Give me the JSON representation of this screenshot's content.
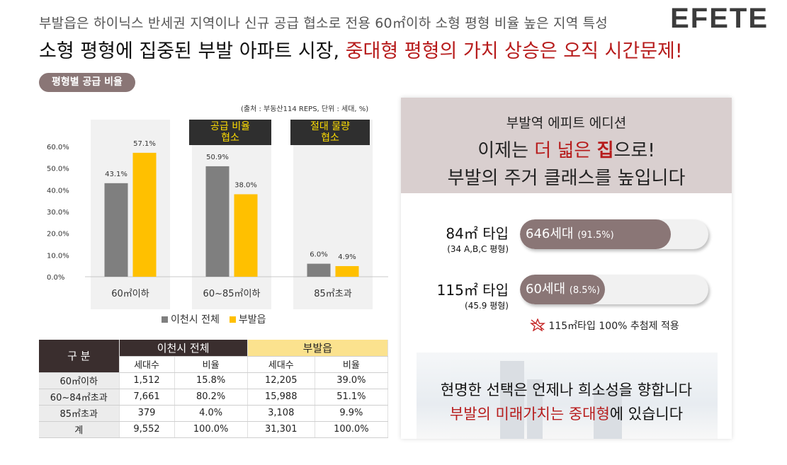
{
  "header": {
    "subheadline": "부발읍은 하이닉스 반세권 지역이나 신규 공급 협소로 전용 60㎡이하 소형 평형 비율 높은 지역 특성",
    "brand": "EFETE",
    "headline_main": "소형 평형에 집중된 부발 아파트 시장,",
    "headline_accent": "중대형 평형의 가치 상승은 오직 시간문제!"
  },
  "section_pill": "평형별 공급 비율",
  "source_note": "(출처 : 부동산114 REPS,  단위 : 세대, %)",
  "tags": [
    {
      "line1": "공급 비율",
      "line2": "협소"
    },
    {
      "line1": "절대 물량",
      "line2": "협소"
    }
  ],
  "chart_data": {
    "type": "bar",
    "categories": [
      "60㎡이하",
      "60~85㎡이하",
      "85㎡초과"
    ],
    "series": [
      {
        "name": "이천시 전체",
        "color": "#7f7f7f",
        "values": [
          43.1,
          50.9,
          6.0
        ],
        "labels": [
          "43.1%",
          "50.9%",
          "6.0%"
        ]
      },
      {
        "name": "부발읍",
        "color": "#ffc000",
        "values": [
          57.1,
          38.0,
          4.9
        ],
        "labels": [
          "57.1%",
          "38.0%",
          "4.9%"
        ]
      }
    ],
    "ylim": [
      0,
      60
    ],
    "yticks": [
      "0.0%",
      "10.0%",
      "20.0%",
      "30.0%",
      "40.0%",
      "50.0%",
      "60.0%"
    ],
    "legend_position": "bottom"
  },
  "table": {
    "corner": "구 분",
    "group1": "이천시 전체",
    "group2": "부발읍",
    "sub_headers": [
      "세대수",
      "비율",
      "세대수",
      "비율"
    ],
    "rows": [
      {
        "label": "60㎡이하",
        "cells": [
          "1,512",
          "15.8%",
          "12,205",
          "39.0%"
        ]
      },
      {
        "label": "60~84㎡초과",
        "cells": [
          "7,661",
          "80.2%",
          "15,988",
          "51.1%"
        ]
      },
      {
        "label": "85㎡초과",
        "cells": [
          "379",
          "4.0%",
          "3,108",
          "9.9%"
        ]
      },
      {
        "label": "계",
        "cells": [
          "9,552",
          "100.0%",
          "31,301",
          "100.0%"
        ]
      }
    ]
  },
  "panel": {
    "title": "부발역 에피트 에디션",
    "line2_pre": "이제는 ",
    "line2_red": "더 넓은 ",
    "line2_bold": "집",
    "line2_post": "으로!",
    "line3": "부발의 주거 클래스를 높입니다",
    "types": [
      {
        "title": "84㎡ 타입",
        "sub": "(34 A,B,C 평형)",
        "count": "646세대",
        "pct": "(91.5%)",
        "fill": 0.8
      },
      {
        "title": "115㎡ 타입",
        "sub": "(45.9 평형)",
        "count": "60세대",
        "pct": "(8.5%)",
        "fill": 0.45
      }
    ],
    "lottery": "115㎡타입 100% 추첨제 적용",
    "closing1": "현명한 선택은 언제나 희소성을 향합니다",
    "closing2_red": "부발의 미래가치는 중대형",
    "closing2_post": "에 있습니다"
  },
  "colors": {
    "accent_red": "#b71c1c",
    "mauve": "#8a7676",
    "gray_bar": "#7f7f7f",
    "yellow_bar": "#ffc000"
  }
}
